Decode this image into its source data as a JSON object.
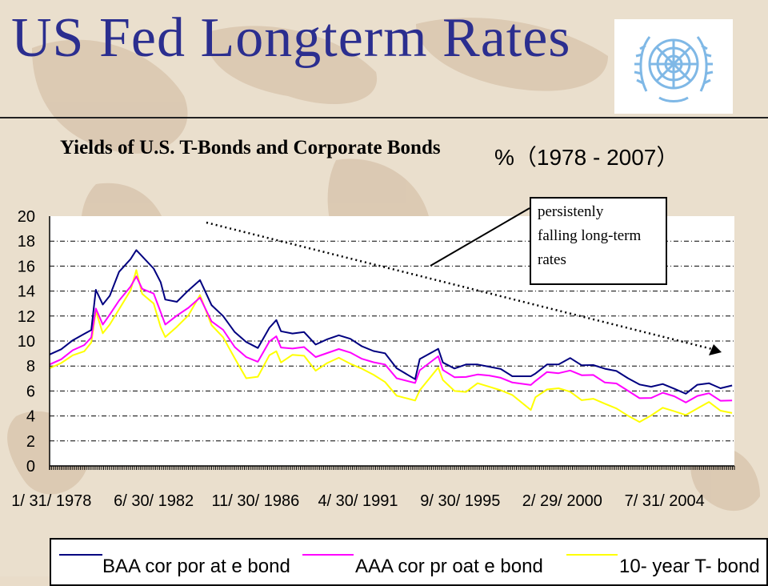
{
  "slide": {
    "title": "US Fed Longterm Rates"
  },
  "logo": {
    "name": "un-emblem-icon"
  },
  "chart_title": {
    "main": "Yields of U.S. T-Bonds and Corporate Bonds",
    "unit": "%（1978 - 2007）"
  },
  "annotation": {
    "lines": [
      "persistenly",
      "falling long-term",
      "rates"
    ]
  },
  "colors": {
    "baa": "#000080",
    "aaa": "#ff00ff",
    "tbond": "#ffff00",
    "grid": "#000000",
    "title": "#2b2e8f"
  },
  "chart_data": {
    "type": "line",
    "title": "Yields of U.S. T-Bonds and Corporate Bonds",
    "unit_label": "%（1978 - 2007）",
    "ylim": [
      0,
      20
    ],
    "y_ticks": [
      "0",
      "2",
      "4",
      "6",
      "8",
      "10",
      "12",
      "14",
      "16",
      "18",
      "20"
    ],
    "x_tick_labels": [
      "1/ 31/ 1978",
      "6/ 30/ 1982",
      "11/ 30/ 1986",
      "4/ 30/ 1991",
      "9/ 30/ 1995",
      "2/ 29/ 2000",
      "7/ 31/ 2004"
    ],
    "x": [
      1978.0,
      1978.5,
      1979.0,
      1979.5,
      1979.8,
      1980.0,
      1980.3,
      1980.6,
      1981.0,
      1981.5,
      1981.75,
      1982.0,
      1982.5,
      1982.8,
      1983.0,
      1983.5,
      1984.0,
      1984.5,
      1985.0,
      1985.5,
      1986.0,
      1986.5,
      1987.0,
      1987.5,
      1987.8,
      1988.0,
      1988.5,
      1989.0,
      1989.5,
      1990.0,
      1990.5,
      1991.0,
      1991.5,
      1992.0,
      1992.5,
      1993.0,
      1993.8,
      1994.0,
      1994.8,
      1995.0,
      1995.5,
      1996.0,
      1996.5,
      1997.0,
      1997.5,
      1998.0,
      1998.8,
      1999.0,
      1999.5,
      2000.0,
      2000.5,
      2001.0,
      2001.5,
      2002.0,
      2002.5,
      2003.0,
      2003.5,
      2004.0,
      2004.5,
      2005.0,
      2005.5,
      2006.0,
      2006.5,
      2007.0,
      2007.5
    ],
    "series": [
      {
        "name": "BAA corporate bond",
        "key": "baa",
        "values": [
          9.1,
          9.4,
          10.0,
          10.4,
          11.0,
          14.1,
          12.8,
          13.8,
          15.6,
          16.5,
          17.1,
          16.9,
          15.8,
          14.6,
          13.5,
          13.2,
          14.0,
          14.7,
          13.0,
          12.0,
          10.6,
          10.1,
          9.5,
          11.0,
          11.5,
          10.9,
          10.6,
          10.6,
          9.9,
          10.2,
          10.4,
          10.0,
          9.7,
          9.2,
          8.9,
          8.0,
          7.0,
          8.5,
          9.2,
          8.4,
          7.8,
          8.0,
          8.3,
          8.0,
          7.7,
          7.0,
          7.3,
          7.4,
          8.0,
          8.3,
          8.7,
          8.0,
          7.9,
          7.9,
          7.6,
          6.9,
          6.7,
          6.4,
          6.5,
          6.0,
          5.9,
          6.5,
          6.5,
          6.4,
          6.5
        ]
      },
      {
        "name": "AAA corproate bond",
        "key": "aaa",
        "values": [
          8.3,
          8.6,
          9.2,
          9.5,
          10.4,
          12.6,
          11.2,
          12.3,
          13.3,
          14.3,
          15.0,
          14.3,
          13.8,
          12.2,
          11.5,
          12.1,
          12.6,
          13.3,
          11.7,
          10.9,
          9.4,
          8.9,
          8.4,
          9.9,
          10.2,
          9.6,
          9.4,
          9.4,
          8.9,
          9.1,
          9.3,
          8.9,
          8.7,
          8.3,
          8.0,
          7.2,
          6.7,
          7.6,
          8.6,
          7.8,
          7.1,
          7.0,
          7.5,
          7.3,
          7.0,
          6.5,
          6.6,
          6.8,
          7.4,
          7.6,
          7.7,
          7.2,
          7.1,
          6.8,
          6.6,
          5.9,
          5.6,
          5.5,
          5.8,
          5.4,
          5.2,
          5.6,
          5.7,
          5.4,
          5.3
        ]
      },
      {
        "name": "10-year T-bond",
        "key": "tbond",
        "values": [
          8.0,
          8.3,
          8.8,
          9.0,
          10.0,
          12.4,
          10.5,
          11.5,
          12.6,
          14.0,
          15.5,
          13.9,
          13.0,
          11.0,
          10.5,
          11.2,
          12.0,
          13.5,
          11.4,
          10.3,
          8.5,
          7.2,
          7.2,
          8.8,
          9.0,
          8.4,
          8.9,
          8.7,
          7.8,
          8.3,
          8.6,
          8.0,
          7.9,
          7.3,
          6.6,
          5.8,
          5.3,
          6.0,
          7.7,
          7.0,
          6.0,
          5.8,
          6.8,
          6.4,
          6.0,
          5.5,
          4.6,
          5.5,
          6.0,
          6.4,
          6.0,
          5.2,
          5.2,
          5.1,
          4.6,
          3.9,
          3.7,
          4.1,
          4.6,
          4.2,
          4.2,
          4.6,
          5.0,
          4.6,
          4.3
        ]
      }
    ]
  },
  "legend": {
    "baa": "BAA cor por at e bond",
    "aaa": "AAA cor pr oat e bond",
    "tbond": "10- year T- bond"
  }
}
